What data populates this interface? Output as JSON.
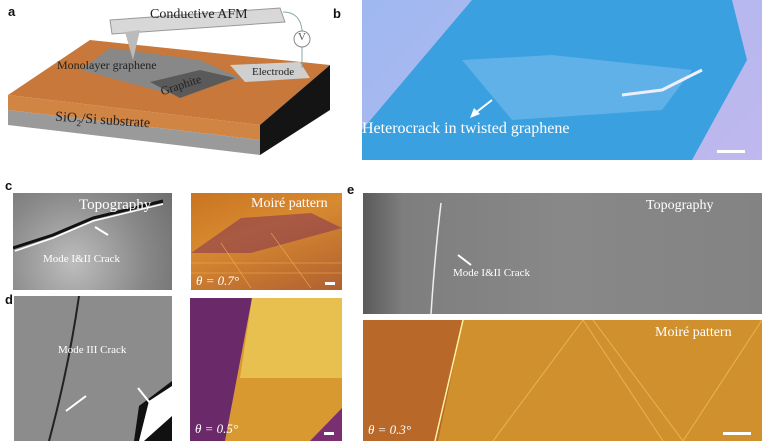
{
  "panels": {
    "a": {
      "label": "a",
      "afm": "Conductive AFM",
      "volt": "V",
      "mono": "Monolayer graphene",
      "graphite": "Graphite",
      "electrode": "Electrode",
      "substrate_pre": "SiO",
      "substrate_sub": "2",
      "substrate_post": "/Si substrate"
    },
    "b": {
      "label": "b",
      "caption": "Heterocrack in twisted graphene"
    },
    "c": {
      "label": "c",
      "topo": "Topography",
      "crack": "Mode I&II Crack",
      "moire": "Moiré pattern",
      "theta": "θ = 0.7°"
    },
    "d": {
      "label": "d",
      "crack": "Mode III Crack",
      "theta": "θ = 0.5°"
    },
    "e": {
      "label": "e",
      "topo": "Topography",
      "crack": "Mode I&II Crack",
      "moire": "Moiré pattern",
      "theta": "θ = 0.3°"
    }
  },
  "colors": {
    "afm_orange": "#c8783a",
    "optical_blue": "#3aa0e0",
    "moire_gold": "#d89a30",
    "moire_purple": "#5a1e6a"
  }
}
